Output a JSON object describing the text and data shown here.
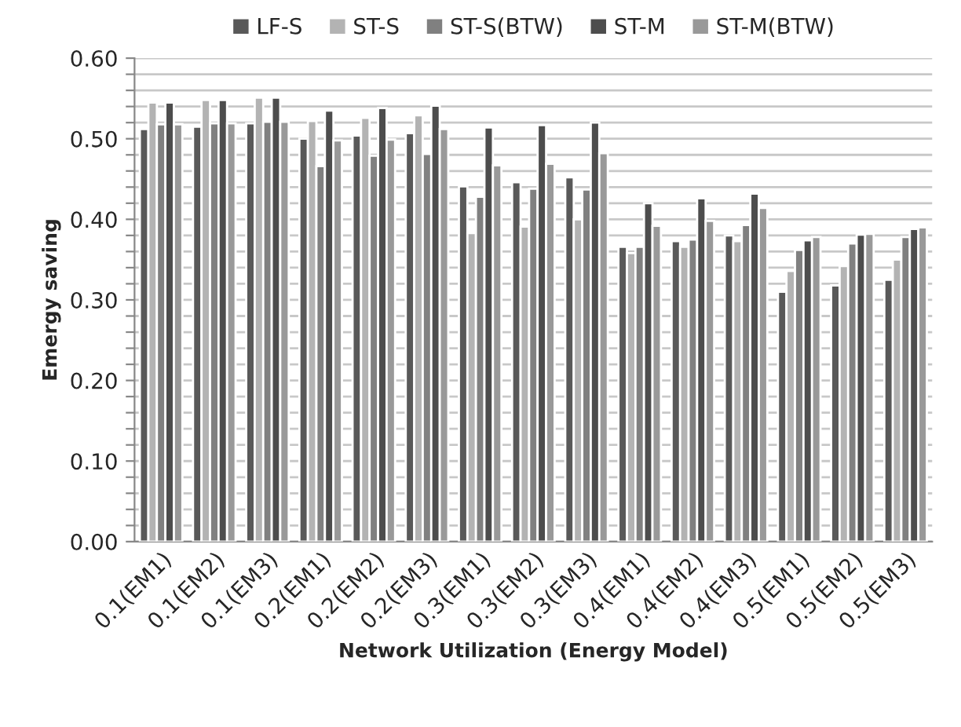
{
  "chart_data": {
    "type": "bar",
    "xlabel": "Network Utilization (Energy Model)",
    "ylabel": "Emergy saving",
    "categories": [
      "0.1(EM1)",
      "0.1(EM2)",
      "0.1(EM3)",
      "0.2(EM1)",
      "0.2(EM2)",
      "0.2(EM3)",
      "0.3(EM1)",
      "0.3(EM2)",
      "0.3(EM3)",
      "0.4(EM1)",
      "0.4(EM2)",
      "0.4(EM3)",
      "0.5(EM1)",
      "0.5(EM2)",
      "0.5(EM3)"
    ],
    "series": [
      {
        "name": "LF-S",
        "color": "#595959",
        "values": [
          0.512,
          0.515,
          0.519,
          0.5,
          0.504,
          0.507,
          0.441,
          0.446,
          0.452,
          0.366,
          0.373,
          0.38,
          0.31,
          0.318,
          0.325
        ]
      },
      {
        "name": "ST-S",
        "color": "#b3b3b3",
        "values": [
          0.545,
          0.548,
          0.551,
          0.522,
          0.526,
          0.529,
          0.383,
          0.391,
          0.4,
          0.358,
          0.366,
          0.373,
          0.336,
          0.342,
          0.35
        ]
      },
      {
        "name": "ST-S(BTW)",
        "color": "#808080",
        "values": [
          0.518,
          0.519,
          0.521,
          0.466,
          0.479,
          0.481,
          0.428,
          0.438,
          0.437,
          0.366,
          0.375,
          0.393,
          0.362,
          0.37,
          0.378
        ]
      },
      {
        "name": "ST-M",
        "color": "#4d4d4d",
        "values": [
          0.545,
          0.548,
          0.551,
          0.535,
          0.538,
          0.541,
          0.514,
          0.517,
          0.52,
          0.42,
          0.426,
          0.432,
          0.374,
          0.381,
          0.388
        ]
      },
      {
        "name": "ST-M(BTW)",
        "color": "#999999",
        "values": [
          0.518,
          0.519,
          0.521,
          0.498,
          0.499,
          0.512,
          0.467,
          0.469,
          0.482,
          0.392,
          0.398,
          0.414,
          0.378,
          0.382,
          0.39
        ]
      }
    ],
    "ylim": [
      0,
      0.6
    ],
    "yticks": [
      {
        "value": 0,
        "label": "0.00"
      },
      {
        "value": 0.02,
        "label": null
      },
      {
        "value": 0.04,
        "label": null
      },
      {
        "value": 0.06,
        "label": null
      },
      {
        "value": 0.08,
        "label": null
      },
      {
        "value": 0.1,
        "label": "0.10"
      },
      {
        "value": 0.12,
        "label": null
      },
      {
        "value": 0.14,
        "label": null
      },
      {
        "value": 0.16,
        "label": null
      },
      {
        "value": 0.18,
        "label": null
      },
      {
        "value": 0.2,
        "label": "0.20"
      },
      {
        "value": 0.22,
        "label": null
      },
      {
        "value": 0.24,
        "label": null
      },
      {
        "value": 0.26,
        "label": null
      },
      {
        "value": 0.28,
        "label": null
      },
      {
        "value": 0.3,
        "label": "0.30"
      },
      {
        "value": 0.32,
        "label": null
      },
      {
        "value": 0.34,
        "label": null
      },
      {
        "value": 0.36,
        "label": null
      },
      {
        "value": 0.38,
        "label": null
      },
      {
        "value": 0.4,
        "label": "0.40"
      },
      {
        "value": 0.42,
        "label": null
      },
      {
        "value": 0.44,
        "label": null
      },
      {
        "value": 0.46,
        "label": null
      },
      {
        "value": 0.48,
        "label": null
      },
      {
        "value": 0.5,
        "label": "0.50"
      },
      {
        "value": 0.52,
        "label": null
      },
      {
        "value": 0.54,
        "label": null
      },
      {
        "value": 0.56,
        "label": null
      },
      {
        "value": 0.58,
        "label": null
      },
      {
        "value": 0.6,
        "label": "0.60"
      }
    ],
    "grid": "y",
    "legend": "top"
  }
}
